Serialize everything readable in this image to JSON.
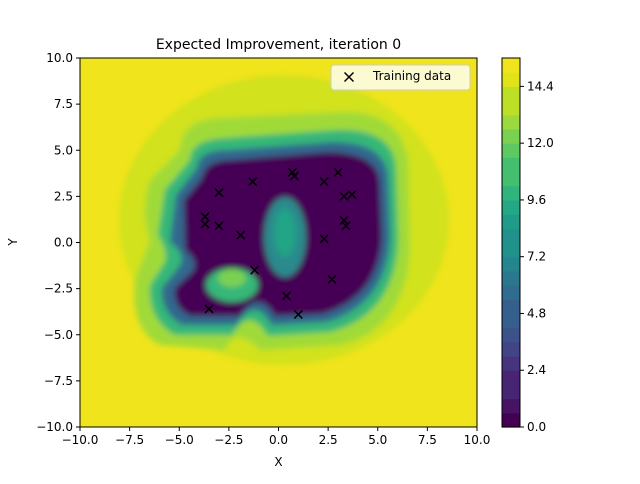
{
  "chart_data": {
    "type": "heatmap",
    "subtype": "filled-contour",
    "title": "Expected Improvement, iteration 0",
    "xlabel": "X",
    "ylabel": "Y",
    "xlim": [
      -10,
      10
    ],
    "ylim": [
      -10,
      10
    ],
    "xticks": [
      -10,
      -7.5,
      -5,
      -2.5,
      0,
      2.5,
      5,
      7.5,
      10
    ],
    "yticks": [
      -10,
      -7.5,
      -5,
      -2.5,
      0,
      2.5,
      5,
      7.5,
      10
    ],
    "xtick_labels": [
      "−10.0",
      "−7.5",
      "−5.0",
      "−2.5",
      "0.0",
      "2.5",
      "5.0",
      "7.5",
      "10.0"
    ],
    "ytick_labels": [
      "−10.0",
      "−7.5",
      "−5.0",
      "−2.5",
      "0.0",
      "2.5",
      "5.0",
      "7.5",
      "10.0"
    ],
    "grid": false,
    "legend": {
      "position": "top-right",
      "entries": [
        "Training data"
      ]
    },
    "colormap": "viridis",
    "colorbar": {
      "range": [
        0.0,
        15.6
      ],
      "levels": 26,
      "ticks": [
        0.0,
        2.4,
        4.8,
        7.2,
        9.6,
        12.0,
        14.4
      ],
      "tick_labels": [
        "0.0",
        "2.4",
        "4.8",
        "7.2",
        "9.6",
        "12.0",
        "14.4"
      ]
    },
    "series": [
      {
        "name": "Training data",
        "marker": "x",
        "color": "#000000",
        "x": [
          -3.7,
          -3.7,
          -3.0,
          -3.0,
          -1.9,
          -1.3,
          -1.2,
          0.7,
          0.8,
          2.3,
          3.0,
          3.3,
          3.7,
          3.3,
          3.4,
          2.3,
          2.7,
          0.4,
          1.0,
          -3.5
        ],
        "y": [
          1.4,
          1.0,
          2.7,
          0.9,
          0.4,
          3.3,
          -1.5,
          3.8,
          3.6,
          3.3,
          3.8,
          2.5,
          2.6,
          1.2,
          0.9,
          0.2,
          -2.0,
          -2.9,
          -3.9,
          -3.6
        ]
      }
    ]
  }
}
